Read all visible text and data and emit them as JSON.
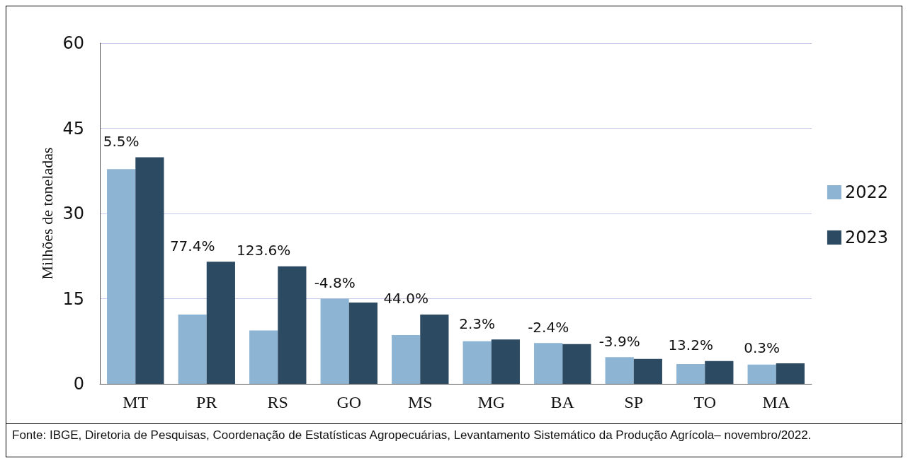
{
  "chart_data": {
    "type": "bar",
    "ylabel": "Milhões de toneladas",
    "categories": [
      "MT",
      "PR",
      "RS",
      "GO",
      "MS",
      "MG",
      "BA",
      "SP",
      "TO",
      "MA"
    ],
    "series": [
      {
        "name": "2022",
        "color": "#8db4d3",
        "values": [
          37.8,
          12.2,
          9.4,
          15.0,
          8.6,
          7.5,
          7.2,
          4.7,
          3.5,
          3.4
        ]
      },
      {
        "name": "2023",
        "color": "#2d4a63",
        "values": [
          39.9,
          21.5,
          20.7,
          14.3,
          12.2,
          7.8,
          7.0,
          4.4,
          4.0,
          3.6
        ]
      }
    ],
    "ylim": [
      0,
      60
    ],
    "yticks": [
      0,
      15,
      30,
      45,
      60
    ],
    "grid": "y",
    "legend": "right",
    "annotations": [
      {
        "text": "5.5%",
        "x": "MT",
        "y": 39.9
      },
      {
        "text": "77.4%",
        "x": "PR",
        "y": 21.5
      },
      {
        "text": "123.6%",
        "x": "RS",
        "y": 20.7
      },
      {
        "text": "-4.8%",
        "x": "GO",
        "y": 15.0
      },
      {
        "text": "44.0%",
        "x": "MS",
        "y": 12.2
      },
      {
        "text": "2.3%",
        "x": "MG",
        "y": 7.8
      },
      {
        "text": "-2.4%",
        "x": "BA",
        "y": 7.2
      },
      {
        "text": "-3.9%",
        "x": "SP",
        "y": 4.7
      },
      {
        "text": "13.2%",
        "x": "TO",
        "y": 4.0
      },
      {
        "text": "0.3%",
        "x": "MA",
        "y": 3.6
      },
      "Fonte: IBGE, Diretoria de Pesquisas, Coordenação de Estatísticas Agropecuárias, Levantamento Sistemático da Produção Agrícola– novembro/2022."
    ]
  }
}
